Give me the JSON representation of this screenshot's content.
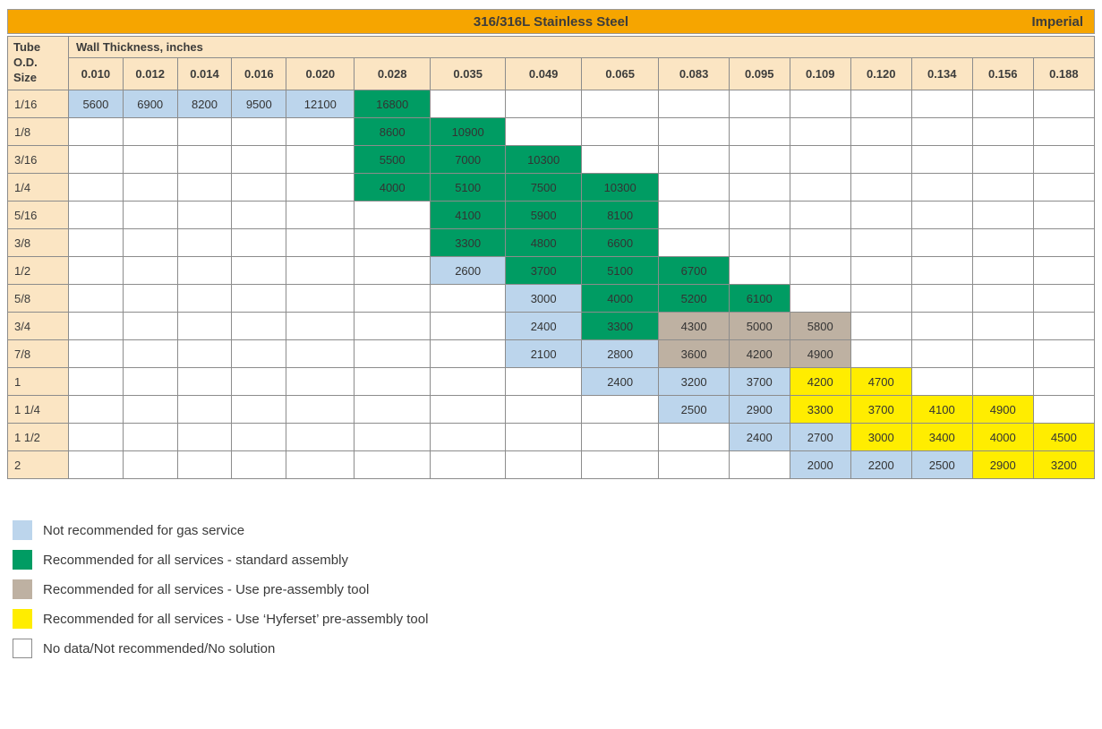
{
  "header": {
    "title": "316/316L Stainless Steel",
    "unit_label": "Imperial"
  },
  "chart_data": {
    "type": "table",
    "title": "316/316L Stainless Steel",
    "unit_system": "Imperial",
    "column_group_label": "Wall Thickness, inches",
    "row_header_label": "Tube\nO.D.\nSize",
    "columns": [
      "0.010",
      "0.012",
      "0.014",
      "0.016",
      "0.020",
      "0.028",
      "0.035",
      "0.049",
      "0.065",
      "0.083",
      "0.095",
      "0.109",
      "0.120",
      "0.134",
      "0.156",
      "0.188"
    ],
    "rows": [
      {
        "size": "1/16",
        "cells": [
          [
            "5600",
            "blue"
          ],
          [
            "6900",
            "blue"
          ],
          [
            "8200",
            "blue"
          ],
          [
            "9500",
            "blue"
          ],
          [
            "12100",
            "blue"
          ],
          [
            "16800",
            "green"
          ],
          null,
          null,
          null,
          null,
          null,
          null,
          null,
          null,
          null,
          null
        ]
      },
      {
        "size": "1/8",
        "cells": [
          null,
          null,
          null,
          null,
          null,
          [
            "8600",
            "green"
          ],
          [
            "10900",
            "green"
          ],
          null,
          null,
          null,
          null,
          null,
          null,
          null,
          null,
          null
        ]
      },
      {
        "size": "3/16",
        "cells": [
          null,
          null,
          null,
          null,
          null,
          [
            "5500",
            "green"
          ],
          [
            "7000",
            "green"
          ],
          [
            "10300",
            "green"
          ],
          null,
          null,
          null,
          null,
          null,
          null,
          null,
          null
        ]
      },
      {
        "size": "1/4",
        "cells": [
          null,
          null,
          null,
          null,
          null,
          [
            "4000",
            "green"
          ],
          [
            "5100",
            "green"
          ],
          [
            "7500",
            "green"
          ],
          [
            "10300",
            "green"
          ],
          null,
          null,
          null,
          null,
          null,
          null,
          null
        ]
      },
      {
        "size": "5/16",
        "cells": [
          null,
          null,
          null,
          null,
          null,
          null,
          [
            "4100",
            "green"
          ],
          [
            "5900",
            "green"
          ],
          [
            "8100",
            "green"
          ],
          null,
          null,
          null,
          null,
          null,
          null,
          null
        ]
      },
      {
        "size": "3/8",
        "cells": [
          null,
          null,
          null,
          null,
          null,
          null,
          [
            "3300",
            "green"
          ],
          [
            "4800",
            "green"
          ],
          [
            "6600",
            "green"
          ],
          null,
          null,
          null,
          null,
          null,
          null,
          null
        ]
      },
      {
        "size": "1/2",
        "cells": [
          null,
          null,
          null,
          null,
          null,
          null,
          [
            "2600",
            "blue"
          ],
          [
            "3700",
            "green"
          ],
          [
            "5100",
            "green"
          ],
          [
            "6700",
            "green"
          ],
          null,
          null,
          null,
          null,
          null,
          null
        ]
      },
      {
        "size": "5/8",
        "cells": [
          null,
          null,
          null,
          null,
          null,
          null,
          null,
          [
            "3000",
            "blue"
          ],
          [
            "4000",
            "green"
          ],
          [
            "5200",
            "green"
          ],
          [
            "6100",
            "green"
          ],
          null,
          null,
          null,
          null,
          null
        ]
      },
      {
        "size": "3/4",
        "cells": [
          null,
          null,
          null,
          null,
          null,
          null,
          null,
          [
            "2400",
            "blue"
          ],
          [
            "3300",
            "green"
          ],
          [
            "4300",
            "tan"
          ],
          [
            "5000",
            "tan"
          ],
          [
            "5800",
            "tan"
          ],
          null,
          null,
          null,
          null
        ]
      },
      {
        "size": "7/8",
        "cells": [
          null,
          null,
          null,
          null,
          null,
          null,
          null,
          [
            "2100",
            "blue"
          ],
          [
            "2800",
            "blue"
          ],
          [
            "3600",
            "tan"
          ],
          [
            "4200",
            "tan"
          ],
          [
            "4900",
            "tan"
          ],
          null,
          null,
          null,
          null
        ]
      },
      {
        "size": "1",
        "cells": [
          null,
          null,
          null,
          null,
          null,
          null,
          null,
          null,
          [
            "2400",
            "blue"
          ],
          [
            "3200",
            "blue"
          ],
          [
            "3700",
            "blue"
          ],
          [
            "4200",
            "yellow"
          ],
          [
            "4700",
            "yellow"
          ],
          null,
          null,
          null
        ]
      },
      {
        "size": "1 1/4",
        "cells": [
          null,
          null,
          null,
          null,
          null,
          null,
          null,
          null,
          null,
          [
            "2500",
            "blue"
          ],
          [
            "2900",
            "blue"
          ],
          [
            "3300",
            "yellow"
          ],
          [
            "3700",
            "yellow"
          ],
          [
            "4100",
            "yellow"
          ],
          [
            "4900",
            "yellow"
          ],
          null
        ]
      },
      {
        "size": "1 1/2",
        "cells": [
          null,
          null,
          null,
          null,
          null,
          null,
          null,
          null,
          null,
          null,
          [
            "2400",
            "blue"
          ],
          [
            "2700",
            "blue"
          ],
          [
            "3000",
            "yellow"
          ],
          [
            "3400",
            "yellow"
          ],
          [
            "4000",
            "yellow"
          ],
          [
            "4500",
            "yellow"
          ]
        ]
      },
      {
        "size": "2",
        "cells": [
          null,
          null,
          null,
          null,
          null,
          null,
          null,
          null,
          null,
          null,
          null,
          [
            "2000",
            "blue"
          ],
          [
            "2200",
            "blue"
          ],
          [
            "2500",
            "blue"
          ],
          [
            "2900",
            "yellow"
          ],
          [
            "3200",
            "yellow"
          ]
        ]
      }
    ],
    "legend": [
      {
        "key": "blue",
        "label": "Not recommended for gas service"
      },
      {
        "key": "green",
        "label": "Recommended for all services - standard assembly"
      },
      {
        "key": "tan",
        "label": "Recommended for all services -  Use pre-assembly tool"
      },
      {
        "key": "yellow",
        "label": "Recommended for all services - Use ‘Hyferset’ pre-assembly tool"
      },
      {
        "key": "white",
        "label": "No data/Not recommended/No solution"
      }
    ]
  },
  "colors": {
    "blue": "#BCD5EC",
    "green": "#009C63",
    "tan": "#BEB1A2",
    "yellow": "#FFED00",
    "white": "#FFFFFF",
    "header_bar": "#F6A500",
    "header_cell": "#FBE5C3"
  }
}
